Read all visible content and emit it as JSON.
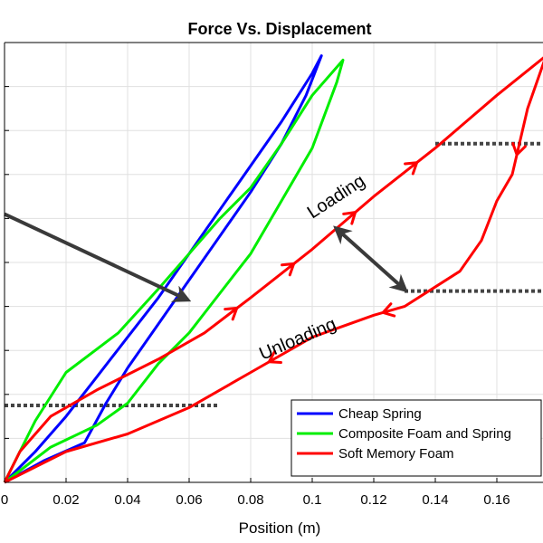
{
  "chart_data": {
    "type": "line",
    "title": "Force Vs. Displacement",
    "xlabel": "Position (m)",
    "ylabel": "",
    "xlim": [
      0,
      0.175
    ],
    "ylim": [
      0,
      100
    ],
    "x_ticks": [
      0,
      0.02,
      0.04,
      0.06,
      0.08,
      0.1,
      0.12,
      0.14,
      0.16
    ],
    "x_tick_labels": [
      "0",
      "0.02",
      "0.04",
      "0.06",
      "0.08",
      "0.1",
      "0.12",
      "0.14",
      "0.16"
    ],
    "y_grid_values": [
      10,
      20,
      30,
      40,
      50,
      60,
      70,
      80,
      90
    ],
    "grid": true,
    "legend_position": "bottom-right",
    "series": [
      {
        "name": "Cheap Spring",
        "color": "#0000ff",
        "loading": [
          [
            0,
            0
          ],
          [
            0.01,
            7
          ],
          [
            0.02,
            15
          ],
          [
            0.03,
            24
          ],
          [
            0.04,
            33
          ],
          [
            0.05,
            42
          ],
          [
            0.06,
            52
          ],
          [
            0.07,
            62
          ],
          [
            0.08,
            72
          ],
          [
            0.09,
            82
          ],
          [
            0.1,
            93
          ],
          [
            0.103,
            97
          ]
        ],
        "unloading": [
          [
            0.103,
            97
          ],
          [
            0.098,
            88
          ],
          [
            0.09,
            77
          ],
          [
            0.08,
            66
          ],
          [
            0.07,
            56
          ],
          [
            0.06,
            46
          ],
          [
            0.05,
            36
          ],
          [
            0.04,
            26
          ],
          [
            0.033,
            18
          ],
          [
            0.026,
            9
          ],
          [
            0.013,
            5
          ],
          [
            0,
            0
          ]
        ]
      },
      {
        "name": "Composite Foam and Spring",
        "color": "#00ee00",
        "loading": [
          [
            0,
            0
          ],
          [
            0.01,
            14
          ],
          [
            0.02,
            25
          ],
          [
            0.037,
            34
          ],
          [
            0.05,
            44
          ],
          [
            0.06,
            52
          ],
          [
            0.07,
            60
          ],
          [
            0.08,
            67
          ],
          [
            0.09,
            77
          ],
          [
            0.1,
            88
          ],
          [
            0.11,
            96
          ]
        ],
        "unloading": [
          [
            0.11,
            96
          ],
          [
            0.108,
            91
          ],
          [
            0.1,
            76
          ],
          [
            0.09,
            64
          ],
          [
            0.08,
            52
          ],
          [
            0.07,
            43
          ],
          [
            0.06,
            34
          ],
          [
            0.05,
            27
          ],
          [
            0.04,
            18
          ],
          [
            0.03,
            13
          ],
          [
            0.015,
            8
          ],
          [
            0,
            0
          ]
        ]
      },
      {
        "name": "Soft Memory Foam",
        "color": "#ff0000",
        "loading": [
          [
            0,
            0
          ],
          [
            0.005,
            7
          ],
          [
            0.015,
            15
          ],
          [
            0.03,
            21
          ],
          [
            0.05,
            28
          ],
          [
            0.065,
            34
          ],
          [
            0.08,
            42
          ],
          [
            0.1,
            53
          ],
          [
            0.12,
            65
          ],
          [
            0.14,
            76
          ],
          [
            0.16,
            88
          ],
          [
            0.176,
            97
          ]
        ],
        "unloading": [
          [
            0.176,
            97
          ],
          [
            0.17,
            85
          ],
          [
            0.165,
            70
          ],
          [
            0.16,
            64
          ],
          [
            0.155,
            55
          ],
          [
            0.148,
            48
          ],
          [
            0.13,
            40
          ],
          [
            0.12,
            38
          ],
          [
            0.1,
            33
          ],
          [
            0.08,
            25
          ],
          [
            0.06,
            17
          ],
          [
            0.04,
            11
          ],
          [
            0.02,
            7
          ],
          [
            0,
            0
          ]
        ]
      }
    ],
    "annotations": {
      "loading": "Loading",
      "unloading": "Unloading"
    },
    "colors": {
      "grid": "#e0e0e0",
      "dotted": "#444444",
      "arrow": "#3a3a3a"
    }
  }
}
